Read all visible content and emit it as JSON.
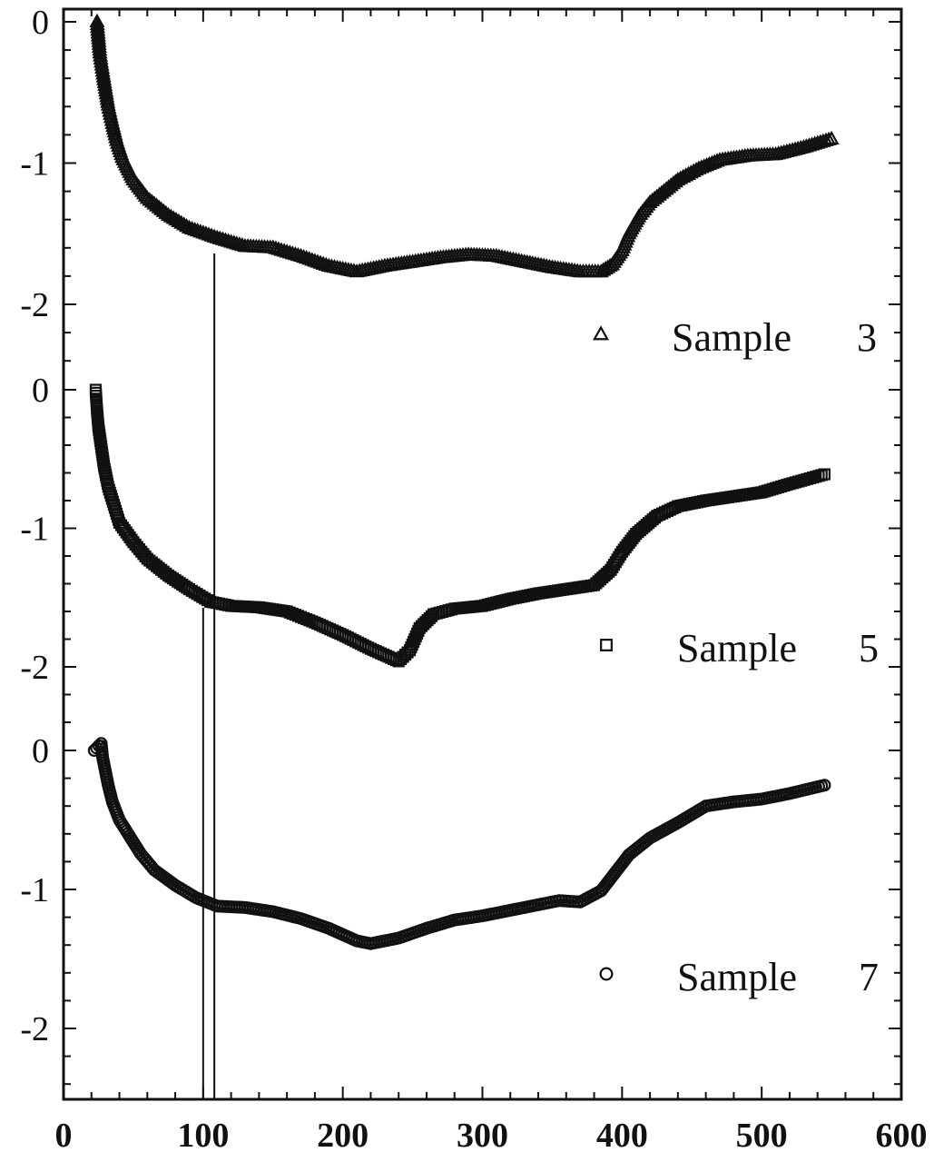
{
  "chart_data": {
    "type": "scatter",
    "xlim": [
      0,
      600
    ],
    "x_ticks": [
      "0",
      "100",
      "200",
      "300",
      "400",
      "500",
      "600"
    ],
    "x_minor_step": 20,
    "panels": [
      {
        "name": "sample3-panel",
        "ylim": [
          -2.4,
          0.1
        ],
        "y_ticks": [
          {
            "v": 0,
            "label": "0"
          },
          {
            "v": -1,
            "label": "-1"
          },
          {
            "v": -2,
            "label": "-2"
          }
        ],
        "legend": {
          "marker": "triangle",
          "label": "Sample",
          "number": "3"
        },
        "series": {
          "name": "Sample 3",
          "marker": "triangle",
          "points": [
            [
              24,
              0
            ],
            [
              26,
              -0.22
            ],
            [
              28,
              -0.35
            ],
            [
              30,
              -0.47
            ],
            [
              32,
              -0.59
            ],
            [
              35,
              -0.72
            ],
            [
              38,
              -0.84
            ],
            [
              42,
              -0.96
            ],
            [
              50,
              -1.12
            ],
            [
              60,
              -1.25
            ],
            [
              75,
              -1.37
            ],
            [
              90,
              -1.46
            ],
            [
              110,
              -1.53
            ],
            [
              130,
              -1.59
            ],
            [
              150,
              -1.6
            ],
            [
              170,
              -1.66
            ],
            [
              190,
              -1.73
            ],
            [
              210,
              -1.77
            ],
            [
              230,
              -1.73
            ],
            [
              250,
              -1.7
            ],
            [
              270,
              -1.67
            ],
            [
              290,
              -1.65
            ],
            [
              310,
              -1.66
            ],
            [
              330,
              -1.7
            ],
            [
              350,
              -1.74
            ],
            [
              370,
              -1.77
            ],
            [
              385,
              -1.77
            ],
            [
              393,
              -1.72
            ],
            [
              400,
              -1.62
            ],
            [
              405,
              -1.5
            ],
            [
              412,
              -1.38
            ],
            [
              420,
              -1.28
            ],
            [
              430,
              -1.2
            ],
            [
              440,
              -1.12
            ],
            [
              455,
              -1.04
            ],
            [
              470,
              -0.98
            ],
            [
              490,
              -0.95
            ],
            [
              510,
              -0.94
            ],
            [
              530,
              -0.89
            ],
            [
              550,
              -0.83
            ]
          ]
        }
      },
      {
        "name": "sample5-panel",
        "ylim": [
          -2.4,
          0.1
        ],
        "y_ticks": [
          {
            "v": 0,
            "label": "0"
          },
          {
            "v": -1,
            "label": "-1"
          },
          {
            "v": -2,
            "label": "-2"
          }
        ],
        "legend": {
          "marker": "square",
          "label": "Sample",
          "number": "5"
        },
        "series": {
          "name": "Sample 5",
          "marker": "square",
          "points": [
            [
              23,
              0
            ],
            [
              24,
              -0.15
            ],
            [
              25,
              -0.27
            ],
            [
              27,
              -0.41
            ],
            [
              29,
              -0.55
            ],
            [
              32,
              -0.7
            ],
            [
              36,
              -0.83
            ],
            [
              40,
              -0.96
            ],
            [
              50,
              -1.1
            ],
            [
              60,
              -1.22
            ],
            [
              75,
              -1.34
            ],
            [
              90,
              -1.44
            ],
            [
              105,
              -1.53
            ],
            [
              120,
              -1.56
            ],
            [
              140,
              -1.57
            ],
            [
              160,
              -1.6
            ],
            [
              180,
              -1.68
            ],
            [
              200,
              -1.77
            ],
            [
              220,
              -1.87
            ],
            [
              240,
              -1.96
            ],
            [
              248,
              -1.88
            ],
            [
              255,
              -1.72
            ],
            [
              265,
              -1.62
            ],
            [
              280,
              -1.58
            ],
            [
              300,
              -1.56
            ],
            [
              320,
              -1.51
            ],
            [
              340,
              -1.47
            ],
            [
              360,
              -1.44
            ],
            [
              380,
              -1.41
            ],
            [
              392,
              -1.3
            ],
            [
              400,
              -1.17
            ],
            [
              410,
              -1.04
            ],
            [
              425,
              -0.91
            ],
            [
              440,
              -0.84
            ],
            [
              460,
              -0.8
            ],
            [
              480,
              -0.77
            ],
            [
              500,
              -0.74
            ],
            [
              520,
              -0.68
            ],
            [
              545,
              -0.61
            ]
          ]
        }
      },
      {
        "name": "sample7-panel",
        "ylim": [
          -2.4,
          0.1
        ],
        "y_ticks": [
          {
            "v": 0,
            "label": "0"
          },
          {
            "v": -1,
            "label": "-1"
          },
          {
            "v": -2,
            "label": "-2"
          }
        ],
        "legend": {
          "marker": "circle",
          "label": "Sample",
          "number": "7"
        },
        "series": {
          "name": "Sample 7",
          "marker": "circle",
          "points": [
            [
              22,
              0
            ],
            [
              27,
              0.05
            ],
            [
              28,
              -0.05
            ],
            [
              30,
              -0.15
            ],
            [
              32,
              -0.25
            ],
            [
              35,
              -0.37
            ],
            [
              40,
              -0.5
            ],
            [
              45,
              -0.58
            ],
            [
              55,
              -0.74
            ],
            [
              65,
              -0.86
            ],
            [
              80,
              -0.97
            ],
            [
              95,
              -1.06
            ],
            [
              110,
              -1.12
            ],
            [
              130,
              -1.13
            ],
            [
              150,
              -1.16
            ],
            [
              170,
              -1.21
            ],
            [
              190,
              -1.28
            ],
            [
              210,
              -1.37
            ],
            [
              220,
              -1.39
            ],
            [
              240,
              -1.35
            ],
            [
              260,
              -1.28
            ],
            [
              280,
              -1.22
            ],
            [
              300,
              -1.19
            ],
            [
              320,
              -1.15
            ],
            [
              340,
              -1.11
            ],
            [
              355,
              -1.08
            ],
            [
              370,
              -1.09
            ],
            [
              385,
              -1.01
            ],
            [
              395,
              -0.88
            ],
            [
              405,
              -0.75
            ],
            [
              420,
              -0.63
            ],
            [
              440,
              -0.52
            ],
            [
              460,
              -0.4
            ],
            [
              480,
              -0.37
            ],
            [
              500,
              -0.35
            ],
            [
              520,
              -0.31
            ],
            [
              545,
              -0.25
            ]
          ]
        }
      }
    ],
    "reference_lines_x": [
      100,
      108
    ]
  }
}
